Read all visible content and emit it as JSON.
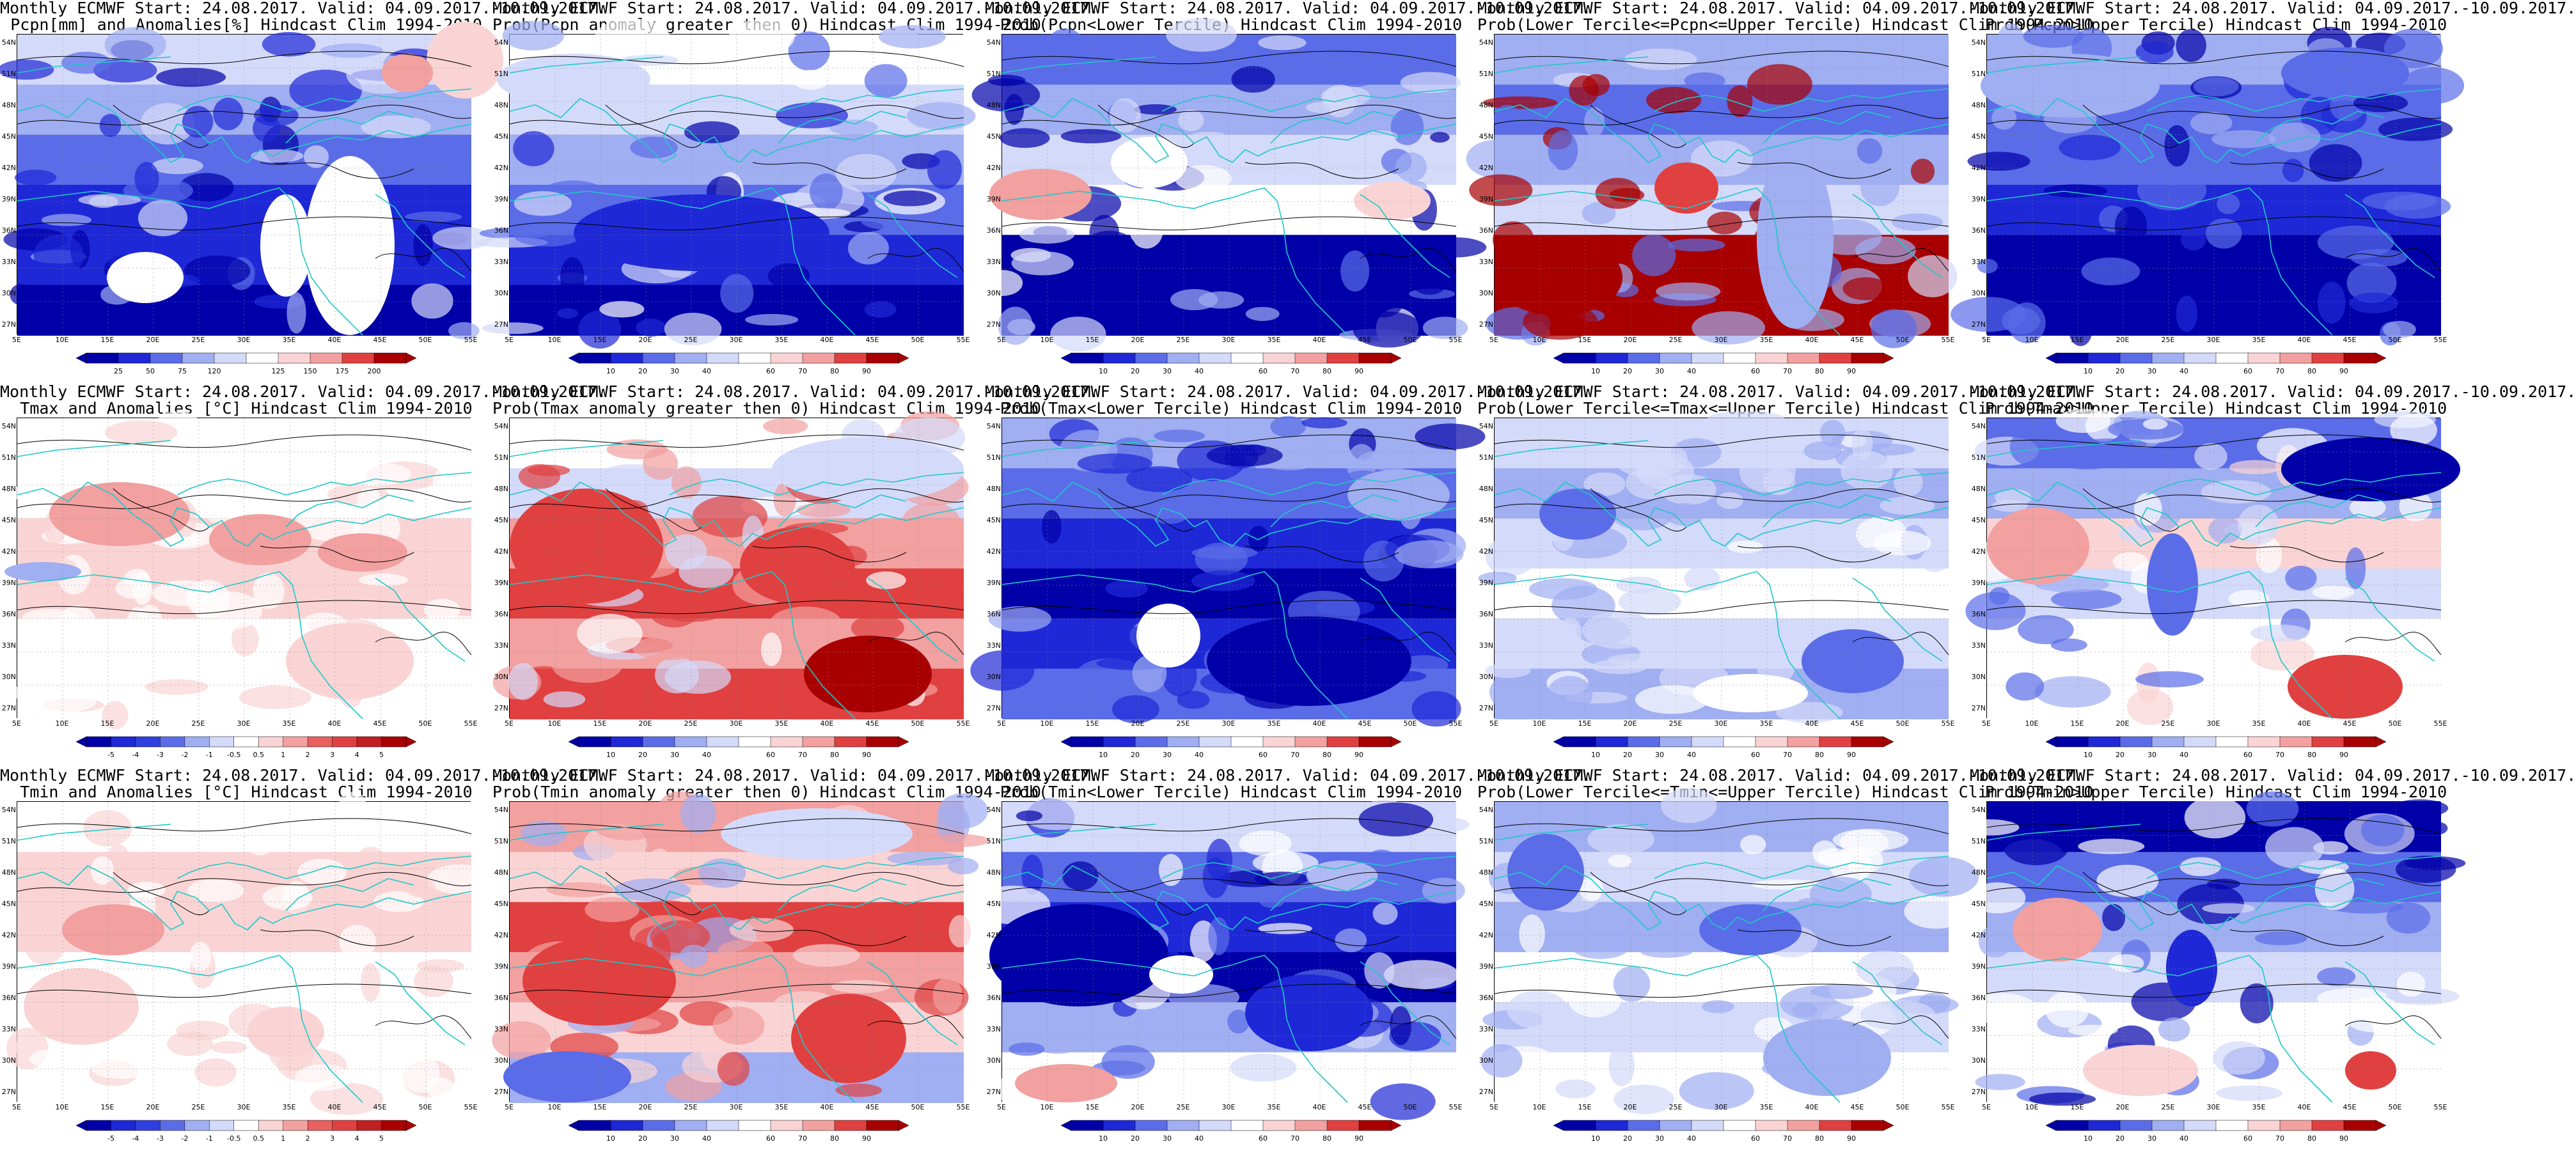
{
  "lat_labels": [
    "54N",
    "51N",
    "48N",
    "45N",
    "42N",
    "39N",
    "36N",
    "33N",
    "30N",
    "27N"
  ],
  "lon_labels": [
    "5E",
    "10E",
    "15E",
    "20E",
    "25E",
    "30E",
    "35E",
    "40E",
    "45E",
    "50E",
    "55E"
  ],
  "colors": {
    "deep_blue": "#0000a8",
    "blue": "#1e28d6",
    "mid_blue": "#5a6ce8",
    "light_blue": "#a0aef2",
    "pale_blue": "#d4dafa",
    "white": "#ffffff",
    "pale_red": "#fad4d4",
    "light_red": "#f2a0a0",
    "red": "#e04040",
    "deep_red": "#a80000",
    "coast": "#20c8c8",
    "contour": "#000000"
  },
  "colorbars": {
    "precip_anom": [
      "25",
      "50",
      "75",
      "120",
      "125",
      "150",
      "175",
      "200"
    ],
    "prob": [
      "10",
      "20",
      "30",
      "40",
      "60",
      "70",
      "80",
      "90"
    ],
    "temp_anom": [
      "-5",
      "-4",
      "-3",
      "-2",
      "-1",
      "-0.5",
      "0.5",
      "1",
      "2",
      "3",
      "4",
      "5"
    ]
  },
  "panels": [
    {
      "title1": "Monthly ECMWF Start: 24.08.2017. Valid: 04.09.2017.-10.09.2017.",
      "title2": "Pcpn[mm] and Anomalies[%] Hindcast Clim 1994-2010",
      "scheme": "pcpn_anom",
      "cbar": "precip_anom"
    },
    {
      "title1": "Monthly ECMWF Start: 24.08.2017. Valid: 04.09.2017.-10.09.2017.",
      "title2": "Prob(Pcpn anomaly greater then 0) Hindcast Clim 1994-2010",
      "scheme": "pcpn_pos",
      "cbar": "prob"
    },
    {
      "title1": "Monthly ECMWF Start: 24.08.2017. Valid: 04.09.2017.-10.09.2017.",
      "title2": "Prob(Pcpn<Lower Tercile) Hindcast Clim 1994-2010",
      "scheme": "pcpn_lower",
      "cbar": "prob"
    },
    {
      "title1": "Monthly ECMWF Start: 24.08.2017. Valid: 04.09.2017.-10.09.2017.",
      "title2": "Prob(Lower Tercile<=Pcpn<=Upper Tercile) Hindcast Clim 1994-2010",
      "scheme": "pcpn_mid",
      "cbar": "prob"
    },
    {
      "title1": "Monthly ECMWF Start: 24.08.2017. Valid: 04.09.2017.-10.09.2017.",
      "title2": "Prob(Pcpn>Upper Tercile) Hindcast Clim 1994-2010",
      "scheme": "pcpn_upper",
      "cbar": "prob"
    },
    {
      "title1": "Monthly ECMWF Start: 24.08.2017. Valid: 04.09.2017.-10.09.2017.",
      "title2": "Tmax and Anomalies [°C] Hindcast Clim 1994-2010",
      "scheme": "temp_anom_warm",
      "cbar": "temp_anom"
    },
    {
      "title1": "Monthly ECMWF Start: 24.08.2017. Valid: 04.09.2017.-10.09.2017.",
      "title2": "Prob(Tmax anomaly greater then 0) Hindcast Clim 1994-2010",
      "scheme": "temp_pos",
      "cbar": "prob"
    },
    {
      "title1": "Monthly ECMWF Start: 24.08.2017. Valid: 04.09.2017.-10.09.2017.",
      "title2": "Prob(Tmax<Lower Tercile) Hindcast Clim 1994-2010",
      "scheme": "temp_lower",
      "cbar": "prob"
    },
    {
      "title1": "Monthly ECMWF Start: 24.08.2017. Valid: 04.09.2017.-10.09.2017.",
      "title2": "Prob(Lower Tercile<=Tmax<=Upper Tercile) Hindcast Clim 1994-2010",
      "scheme": "temp_mid",
      "cbar": "prob"
    },
    {
      "title1": "Monthly ECMWF Start: 24.08.2017. Valid: 04.09.2017.-10.09.2017.",
      "title2": "Prob(Tmax>Upper Tercile) Hindcast Clim 1994-2010",
      "scheme": "temp_upper",
      "cbar": "prob"
    },
    {
      "title1": "Monthly ECMWF Start: 24.08.2017. Valid: 04.09.2017.-10.09.2017.",
      "title2": "Tmin and Anomalies [°C] Hindcast Clim 1994-2010",
      "scheme": "temp_anom_mild",
      "cbar": "temp_anom"
    },
    {
      "title1": "Monthly ECMWF Start: 24.08.2017. Valid: 04.09.2017.-10.09.2017.",
      "title2": "Prob(Tmin anomaly greater then 0) Hindcast Clim 1994-2010",
      "scheme": "temp_pos2",
      "cbar": "prob"
    },
    {
      "title1": "Monthly ECMWF Start: 24.08.2017. Valid: 04.09.2017.-10.09.2017.",
      "title2": "Prob(Tmin<Lower Tercile) Hindcast Clim 1994-2010",
      "scheme": "temp_lower2",
      "cbar": "prob"
    },
    {
      "title1": "Monthly ECMWF Start: 24.08.2017. Valid: 04.09.2017.-10.09.2017.",
      "title2": "Prob(Lower Tercile<=Tmin<=Upper Tercile) Hindcast Clim 1994-2010",
      "scheme": "temp_mid2",
      "cbar": "prob"
    },
    {
      "title1": "Monthly ECMWF Start: 24.08.2017. Valid: 04.09.2017.-10.09.2017.",
      "title2": "Prob(Tmin>Upper Tercile) Hindcast Clim 1994-2010",
      "scheme": "temp_upper2",
      "cbar": "prob"
    }
  ]
}
